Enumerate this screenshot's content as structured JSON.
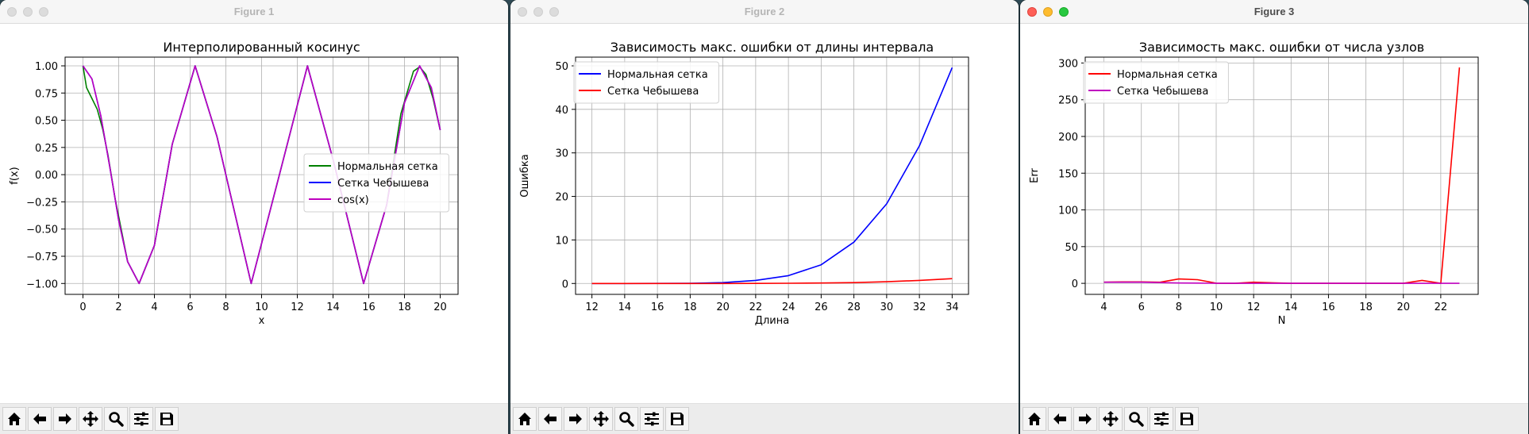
{
  "windows": [
    {
      "title": "Figure 1",
      "active": false,
      "chart_data": {
        "type": "line",
        "title": "Интерполированный косинус",
        "xlabel": "x",
        "ylabel": "f(x)",
        "xlim": [
          -1,
          21
        ],
        "ylim": [
          -1.1,
          1.08
        ],
        "xticks": [
          0,
          2,
          4,
          6,
          8,
          10,
          12,
          14,
          16,
          18,
          20
        ],
        "yticks": [
          -1.0,
          -0.75,
          -0.5,
          -0.25,
          0.0,
          0.25,
          0.5,
          0.75,
          1.0
        ],
        "ytick_labels": [
          "−1.00",
          "−0.75",
          "−0.50",
          "−0.25",
          "0.00",
          "0.25",
          "0.50",
          "0.75",
          "1.00"
        ],
        "grid": true,
        "legend_position": "center-right",
        "series": [
          {
            "name": "Нормальная сетка",
            "color": "#008000",
            "x": [
              0,
              0.2,
              0.5,
              0.8,
              1.1,
              1.4,
              1.8,
              2.5,
              3.14,
              4,
              5,
              6.28,
              7.5,
              9.42,
              11,
              12.57,
              14,
              15.71,
              17,
              17.8,
              18.5,
              18.85,
              19.2,
              19.6,
              20
            ],
            "y": [
              1.0,
              0.8,
              0.7,
              0.6,
              0.42,
              0.18,
              -0.22,
              -0.8,
              -1.0,
              -0.65,
              0.28,
              1.0,
              0.35,
              -1.0,
              0.0,
              1.0,
              0.14,
              -1.0,
              -0.28,
              0.56,
              0.95,
              0.99,
              0.92,
              0.7,
              0.41
            ]
          },
          {
            "name": "Сетка Чебышева",
            "color": "#0000ff",
            "x": [
              0,
              0.5,
              1,
              1.5,
              2,
              2.5,
              3.14,
              4,
              5,
              6.28,
              7.5,
              9.42,
              11,
              12.57,
              14,
              15.71,
              17,
              18,
              18.85,
              19.5,
              20
            ],
            "y": [
              1.0,
              0.88,
              0.54,
              0.07,
              -0.42,
              -0.8,
              -1.0,
              -0.65,
              0.28,
              1.0,
              0.35,
              -1.0,
              0.0,
              1.0,
              0.14,
              -1.0,
              -0.28,
              0.66,
              1.0,
              0.8,
              0.41
            ]
          },
          {
            "name": "cos(x)",
            "color": "#bf00bf",
            "x": [
              0,
              0.5,
              1,
              1.5,
              2,
              2.5,
              3.14,
              4,
              5,
              6.28,
              7.5,
              9.42,
              11,
              12.57,
              14,
              15.71,
              17,
              18,
              18.85,
              19.5,
              20
            ],
            "y": [
              1.0,
              0.88,
              0.54,
              0.07,
              -0.42,
              -0.8,
              -1.0,
              -0.65,
              0.28,
              1.0,
              0.35,
              -1.0,
              0.0,
              1.0,
              0.14,
              -1.0,
              -0.28,
              0.66,
              1.0,
              0.8,
              0.41
            ]
          }
        ]
      }
    },
    {
      "title": "Figure 2",
      "active": false,
      "chart_data": {
        "type": "line",
        "title": "Зависимость макс. ошибки от длины интервала",
        "xlabel": "Длина",
        "ylabel": "Ошибка",
        "xlim": [
          11,
          35
        ],
        "ylim": [
          -2.5,
          52
        ],
        "xticks": [
          12,
          14,
          16,
          18,
          20,
          22,
          24,
          26,
          28,
          30,
          32,
          34
        ],
        "yticks": [
          0,
          10,
          20,
          30,
          40,
          50
        ],
        "grid": true,
        "legend_position": "top-left",
        "series": [
          {
            "name": "Нормальная сетка",
            "color": "#0000ff",
            "x": [
              12,
              14,
              16,
              18,
              20,
              22,
              24,
              26,
              28,
              30,
              32,
              34
            ],
            "y": [
              0.0,
              0.0,
              0.01,
              0.03,
              0.2,
              0.7,
              1.8,
              4.3,
              9.5,
              18.3,
              31.6,
              49.6
            ]
          },
          {
            "name": "Сетка Чебышева",
            "color": "#ff0000",
            "x": [
              12,
              14,
              16,
              18,
              20,
              22,
              24,
              26,
              28,
              30,
              32,
              34
            ],
            "y": [
              0.0,
              0.0,
              0.0,
              0.0,
              0.0,
              0.02,
              0.05,
              0.1,
              0.2,
              0.4,
              0.7,
              1.1
            ]
          }
        ]
      }
    },
    {
      "title": "Figure 3",
      "active": true,
      "chart_data": {
        "type": "line",
        "title": "Зависимость макс. ошибки от числа узлов",
        "xlabel": "N",
        "ylabel": "Err",
        "xlim": [
          3,
          24
        ],
        "ylim": [
          -15,
          308
        ],
        "xticks": [
          4,
          6,
          8,
          10,
          12,
          14,
          16,
          18,
          20,
          22
        ],
        "yticks": [
          0,
          50,
          100,
          150,
          200,
          250,
          300
        ],
        "grid": true,
        "legend_position": "top-left",
        "series": [
          {
            "name": "Нормальная сетка",
            "color": "#ff0000",
            "x": [
              4,
              5,
              6,
              7,
              8,
              9,
              10,
              11,
              12,
              13,
              14,
              15,
              16,
              17,
              18,
              19,
              20,
              21,
              22,
              23
            ],
            "y": [
              1.5,
              2.0,
              2.0,
              1.5,
              6.0,
              5.0,
              0.2,
              0.0,
              1.5,
              0.8,
              0.0,
              0.0,
              0.0,
              0.0,
              0.0,
              0.0,
              0.0,
              4.0,
              0.0,
              294
            ]
          },
          {
            "name": "Сетка Чебышева",
            "color": "#bf00bf",
            "x": [
              4,
              5,
              6,
              7,
              8,
              9,
              10,
              11,
              12,
              13,
              14,
              15,
              16,
              17,
              18,
              19,
              20,
              21,
              22,
              23
            ],
            "y": [
              1.5,
              1.5,
              1.5,
              1.0,
              0.5,
              0.3,
              0.0,
              0.0,
              0.0,
              0.0,
              0.0,
              0.0,
              0.0,
              0.0,
              0.0,
              0.0,
              0.0,
              0.0,
              0.0,
              0.0
            ]
          }
        ]
      }
    }
  ],
  "toolbar": [
    {
      "icon": "home-icon"
    },
    {
      "icon": "arrow-left-icon"
    },
    {
      "icon": "arrow-right-icon"
    },
    {
      "icon": "move-icon"
    },
    {
      "icon": "zoom-icon"
    },
    {
      "icon": "sliders-icon"
    },
    {
      "icon": "save-icon"
    }
  ]
}
